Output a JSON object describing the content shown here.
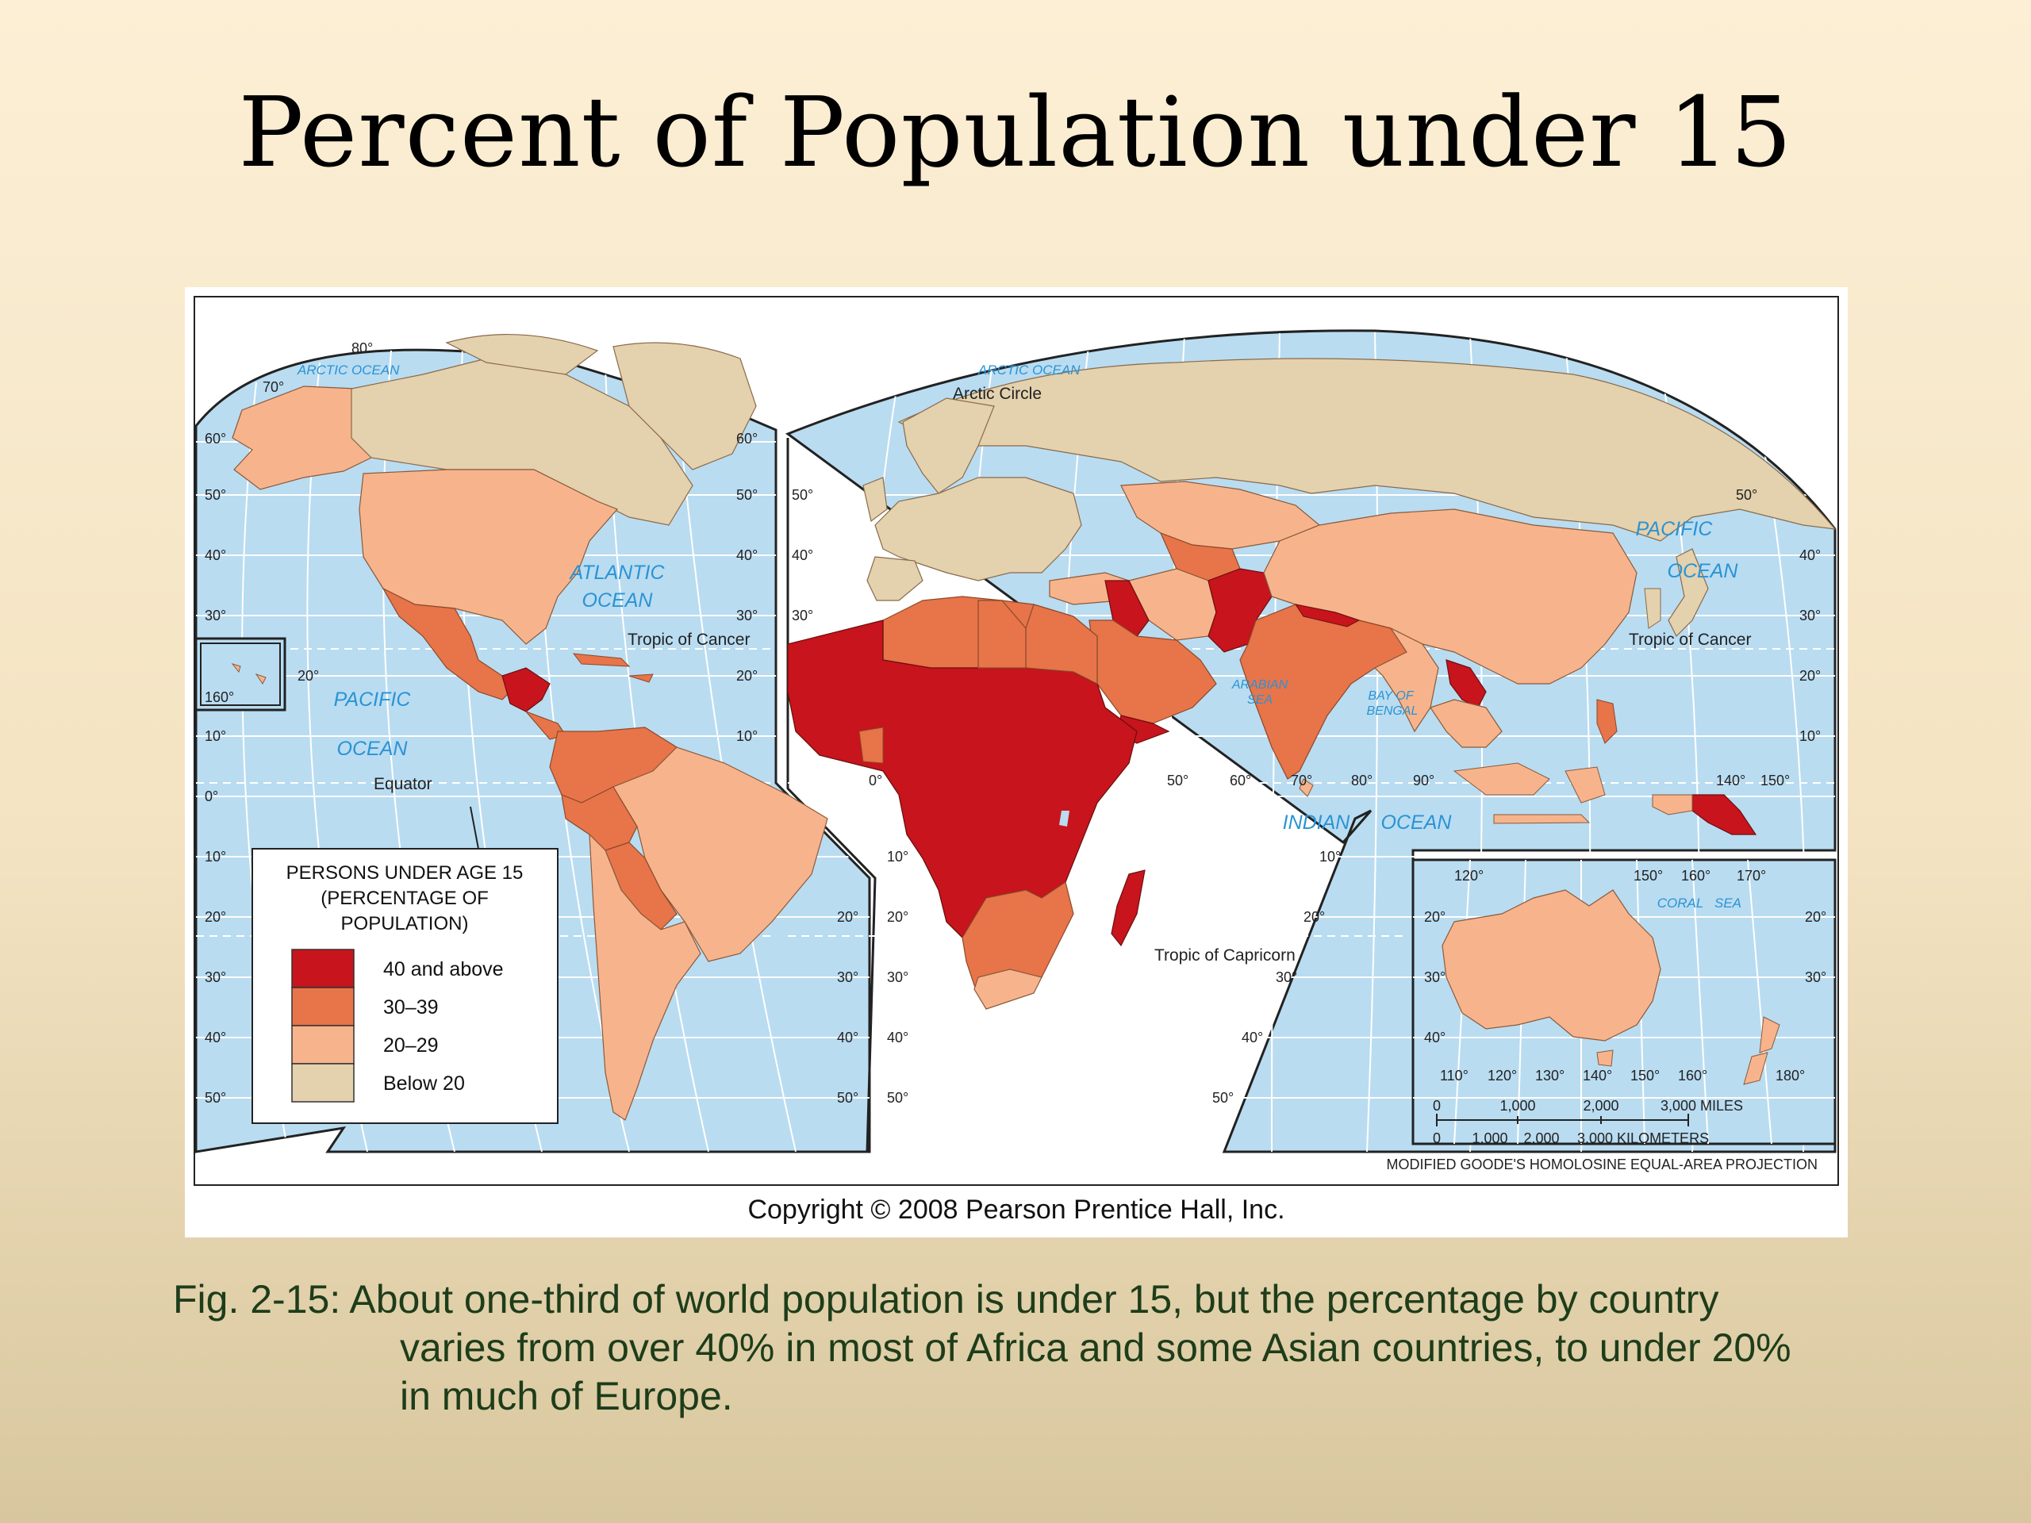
{
  "slide": {
    "title": "Percent of Population under 15",
    "caption_line1": "Fig. 2-15:  About one-third of world population is under 15, but the percentage by country",
    "caption_line2": "varies from over 40% in most of Africa and some Asian countries, to under 20%",
    "caption_line3": "in much of Europe."
  },
  "map": {
    "copyright": "Copyright © 2008 Pearson Prentice Hall, Inc.",
    "projection": "MODIFIED GOODE'S HOMOLOSINE EQUAL-AREA PROJECTION",
    "legend": {
      "title_line1": "PERSONS UNDER AGE 15",
      "title_line2": "(PERCENTAGE OF",
      "title_line3": "POPULATION)",
      "classes": [
        {
          "label": "40 and above",
          "color": "#c8141c"
        },
        {
          "label": "30–39",
          "color": "#e8744a"
        },
        {
          "label": "20–29",
          "color": "#f7b48c"
        },
        {
          "label": "Below 20",
          "color": "#e4d1ae"
        }
      ]
    },
    "colors": {
      "ocean": "#b9dcf1",
      "grid": "#ffffff",
      "water_label": "#2a93d4"
    },
    "water_labels": {
      "arctic1": "ARCTIC OCEAN",
      "arctic2": "ARCTIC OCEAN",
      "atlantic1": "ATLANTIC",
      "atlantic2": "OCEAN",
      "pacific_w1": "PACIFIC",
      "pacific_w2": "OCEAN",
      "pacific_e1": "PACIFIC",
      "pacific_e2": "OCEAN",
      "indian": "INDIAN",
      "indian_ocean": "OCEAN",
      "arabian1": "ARABIAN",
      "arabian2": "SEA",
      "bengal1": "BAY OF",
      "bengal2": "BENGAL",
      "coral": "CORAL",
      "coral_sea": "SEA"
    },
    "lines": {
      "arctic_circle": "Arctic Circle",
      "tropic_cancer_w": "Tropic of Cancer",
      "tropic_cancer_e": "Tropic of Cancer",
      "equator": "Equator",
      "tropic_capricorn": "Tropic of Capricorn"
    },
    "lat_ticks": {
      "l80": "80°",
      "l70": "70°",
      "l60": "60°",
      "l50": "50°",
      "l40": "40°",
      "l30": "30°",
      "l20": "20°",
      "l10": "10°",
      "l0": "0°",
      "l160": "160°"
    },
    "lon_ticks": {
      "e50": "50°",
      "e60": "60°",
      "e70": "70°",
      "e80": "80°",
      "e90": "90°",
      "e140": "140°",
      "e150": "150°",
      "e0": "0°"
    },
    "inset": {
      "top": [
        "120°",
        "150°",
        "160°",
        "170°"
      ],
      "bottom": [
        "110°",
        "120°",
        "130°",
        "140°",
        "150°",
        "160°",
        "180°"
      ],
      "left": [
        "20°",
        "30°",
        "40°"
      ],
      "right": [
        "20°",
        "30°"
      ]
    },
    "scale": {
      "miles": [
        "0",
        "1,000",
        "2,000",
        "3,000 MILES"
      ],
      "km": [
        "0",
        "1,000",
        "2,000",
        "3,000 KILOMETERS"
      ]
    }
  }
}
